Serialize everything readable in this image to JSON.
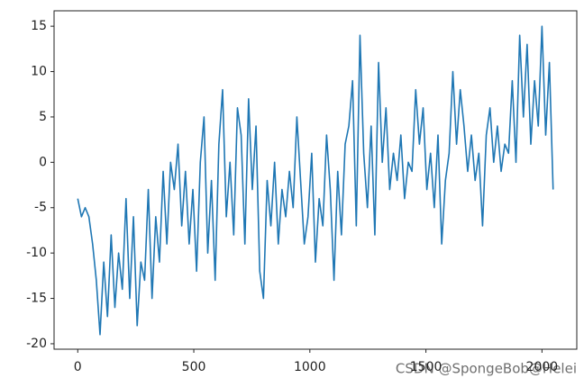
{
  "chart_data": {
    "type": "line",
    "x": [
      0,
      16,
      32,
      48,
      64,
      80,
      96,
      112,
      128,
      144,
      160,
      176,
      192,
      208,
      224,
      240,
      256,
      272,
      288,
      304,
      320,
      336,
      352,
      368,
      384,
      400,
      416,
      432,
      448,
      464,
      480,
      496,
      512,
      528,
      544,
      560,
      576,
      592,
      608,
      624,
      640,
      656,
      672,
      688,
      704,
      720,
      736,
      752,
      768,
      784,
      800,
      816,
      832,
      848,
      864,
      880,
      896,
      912,
      928,
      944,
      960,
      976,
      992,
      1008,
      1024,
      1040,
      1056,
      1072,
      1088,
      1104,
      1120,
      1136,
      1152,
      1168,
      1184,
      1200,
      1216,
      1232,
      1248,
      1264,
      1280,
      1296,
      1312,
      1328,
      1344,
      1360,
      1376,
      1392,
      1408,
      1424,
      1440,
      1456,
      1472,
      1488,
      1504,
      1520,
      1536,
      1552,
      1568,
      1584,
      1600,
      1616,
      1632,
      1648,
      1664,
      1680,
      1696,
      1712,
      1728,
      1744,
      1760,
      1776,
      1792,
      1808,
      1824,
      1840,
      1856,
      1872,
      1888,
      1904,
      1920,
      1936,
      1952,
      1968,
      1984,
      2000,
      2016,
      2032,
      2048
    ],
    "values": [
      -4,
      -6,
      -5,
      -6,
      -9,
      -13,
      -19,
      -11,
      -17,
      -8,
      -16,
      -10,
      -14,
      -4,
      -15,
      -6,
      -18,
      -11,
      -13,
      -3,
      -15,
      -6,
      -11,
      -1,
      -9,
      0,
      -3,
      2,
      -7,
      -1,
      -9,
      -3,
      -12,
      0,
      5,
      -10,
      -2,
      -13,
      2,
      8,
      -6,
      0,
      -8,
      6,
      3,
      -9,
      7,
      -3,
      4,
      -12,
      -15,
      -2,
      -7,
      0,
      -9,
      -3,
      -6,
      -1,
      -5,
      5,
      -2,
      -9,
      -6,
      1,
      -11,
      -4,
      -7,
      3,
      -3,
      -13,
      -1,
      -8,
      2,
      4,
      9,
      -7,
      14,
      1,
      -5,
      4,
      -8,
      11,
      0,
      6,
      -3,
      1,
      -2,
      3,
      -4,
      0,
      -1,
      8,
      2,
      6,
      -3,
      1,
      -5,
      3,
      -9,
      -2,
      1,
      10,
      2,
      8,
      4,
      -1,
      3,
      -2,
      1,
      -7,
      3,
      6,
      0,
      4,
      -1,
      2,
      1,
      9,
      0,
      14,
      5,
      13,
      2,
      9,
      4,
      15,
      3,
      11,
      -3
    ],
    "color": "#1f77b4",
    "xlim": [
      -102,
      2150
    ],
    "ylim": [
      -20.6,
      16.7
    ],
    "xticks": [
      0,
      500,
      1000,
      1500,
      2000
    ],
    "yticks": [
      -20,
      -15,
      -10,
      -5,
      0,
      5,
      10,
      15
    ],
    "grid": false,
    "annotation": "CSDN @SpongeBob@Helei"
  }
}
